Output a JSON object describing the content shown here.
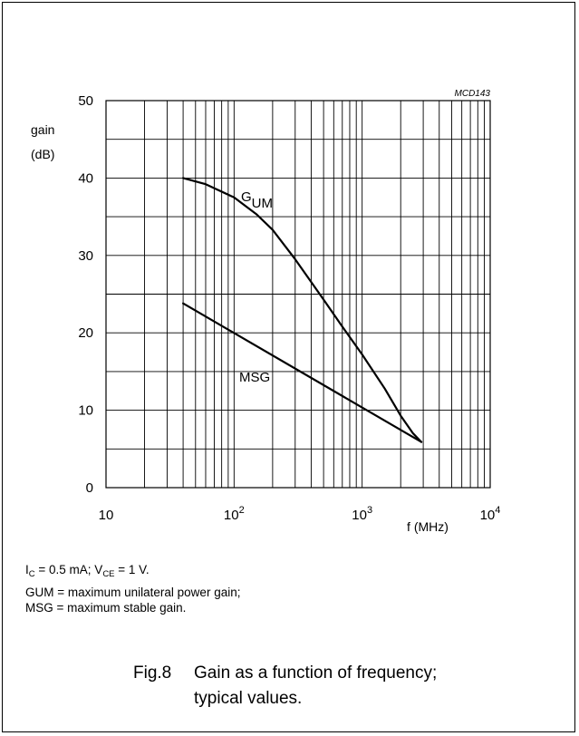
{
  "chart_data": {
    "type": "line",
    "code": "MCD143",
    "ylabel_line1": "gain",
    "ylabel_line2": "(dB)",
    "xlabel": "f (MHz)",
    "x_scale": "log",
    "xlim": [
      10,
      10000
    ],
    "ylim": [
      0,
      50
    ],
    "grid": true,
    "x_tick_labels": [
      {
        "value": 10,
        "base": "10",
        "exp": ""
      },
      {
        "value": 100,
        "base": "10",
        "exp": "2"
      },
      {
        "value": 1000,
        "base": "10",
        "exp": "3"
      },
      {
        "value": 10000,
        "base": "10",
        "exp": "4"
      }
    ],
    "y_ticks": [
      0,
      10,
      20,
      30,
      40,
      50
    ],
    "series": [
      {
        "label_main": "G",
        "label_sub": "UM",
        "x": [
          40,
          60,
          100,
          150,
          200,
          300,
          500,
          700,
          1000,
          1500,
          2000,
          2500,
          2900
        ],
        "y": [
          40,
          39.2,
          37.5,
          35.3,
          33.3,
          29.5,
          24.3,
          20.8,
          17.2,
          12.8,
          9.3,
          7.0,
          5.9
        ]
      },
      {
        "label_main": "MSG",
        "label_sub": "",
        "x": [
          40,
          2900
        ],
        "y": [
          23.8,
          5.9
        ]
      }
    ]
  },
  "notes": {
    "line1": {
      "ic": "I",
      "ic_sub": "C",
      "mid": " = 0.5 mA; V",
      "vce_sub": "CE",
      "end": " = 1 V."
    },
    "line2": "GUM = maximum unilateral power gain;",
    "line3": "MSG = maximum stable gain."
  },
  "caption": {
    "number": "Fig.8",
    "line1": "Gain as a function of frequency;",
    "line2": "typical values."
  }
}
